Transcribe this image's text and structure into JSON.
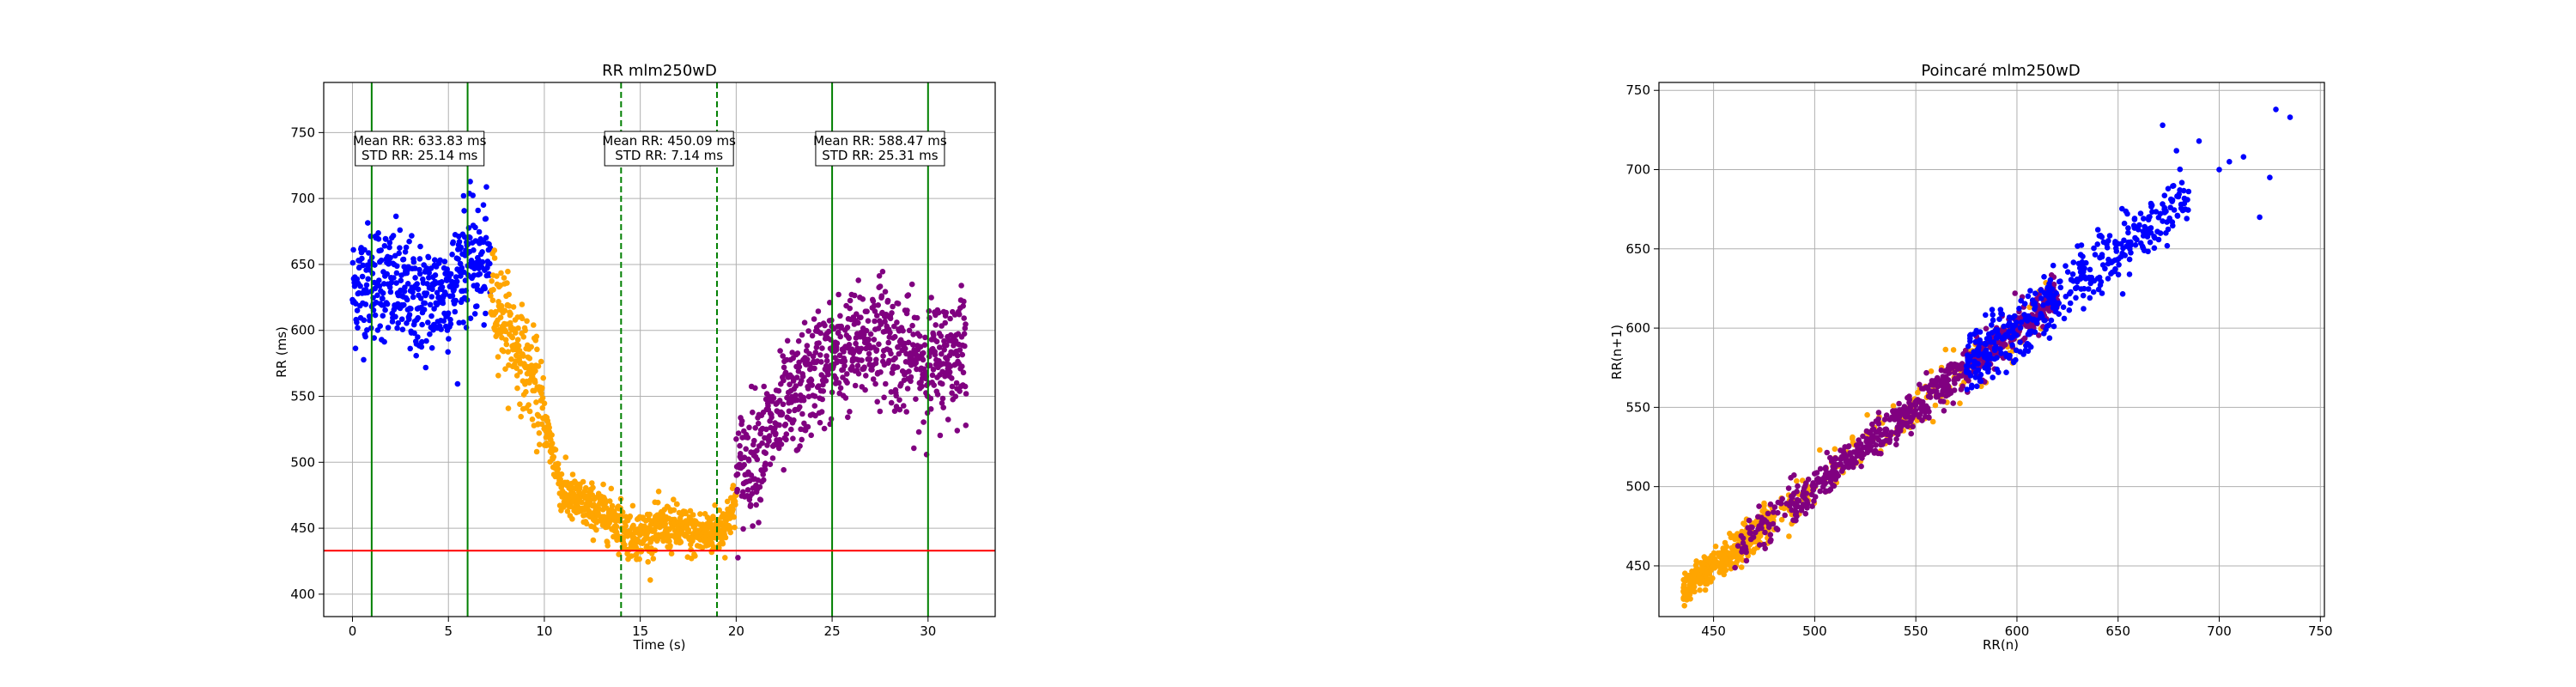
{
  "colors": {
    "blue": "#0000ff",
    "orange": "#ffa500",
    "purple": "#800080",
    "green": "#008000",
    "red": "#ff0000",
    "grid": "#b0b0b0"
  },
  "chart_data": [
    {
      "type": "scatter",
      "title": "RR mlm250wD",
      "xlabel": "Time (s)",
      "ylabel": "RR (ms)",
      "xlim": [
        -1.5,
        33.5
      ],
      "ylim": [
        383,
        788
      ],
      "xticks": [
        0,
        5,
        10,
        15,
        20,
        25,
        30
      ],
      "yticks": [
        400,
        450,
        500,
        550,
        600,
        650,
        700,
        750
      ],
      "grid": true,
      "segments": [
        {
          "color": "blue",
          "x_range": [
            0,
            7.2
          ],
          "mean": 633.83,
          "std": 25.14
        },
        {
          "color": "orange",
          "x_range": [
            7.2,
            20
          ],
          "mean": 450.09,
          "std": 7.14
        },
        {
          "color": "purple",
          "x_range": [
            20,
            32
          ],
          "mean": 588.47,
          "std": 25.31
        }
      ],
      "reference_lines": {
        "vertical_solid_green": [
          1,
          6,
          25,
          30
        ],
        "vertical_dashed_green": [
          14,
          19
        ],
        "horizontal_red": 433
      },
      "annotations": [
        {
          "x": 3.5,
          "lines": [
            "Mean RR: 633.83 ms",
            "STD RR: 25.14 ms"
          ]
        },
        {
          "x": 16.5,
          "lines": [
            "Mean RR: 450.09 ms",
            "STD RR: 7.14 ms"
          ]
        },
        {
          "x": 27.5,
          "lines": [
            "Mean RR: 588.47 ms",
            "STD RR: 25.31 ms"
          ]
        }
      ]
    },
    {
      "type": "scatter",
      "title": "Poincaré mlm250wD",
      "xlabel": "RR(n)",
      "ylabel": "RR(n+1)",
      "xlim": [
        423,
        752
      ],
      "ylim": [
        418,
        755
      ],
      "xticks": [
        450,
        500,
        550,
        600,
        650,
        700,
        750
      ],
      "yticks": [
        450,
        500,
        550,
        600,
        650,
        700,
        750
      ],
      "grid": true,
      "clusters": [
        {
          "color": "orange",
          "from": 435,
          "to": 625,
          "weight": "low-end dense"
        },
        {
          "color": "purple",
          "from": 460,
          "to": 620
        },
        {
          "color": "blue",
          "from": 575,
          "to": 740
        }
      ]
    }
  ]
}
